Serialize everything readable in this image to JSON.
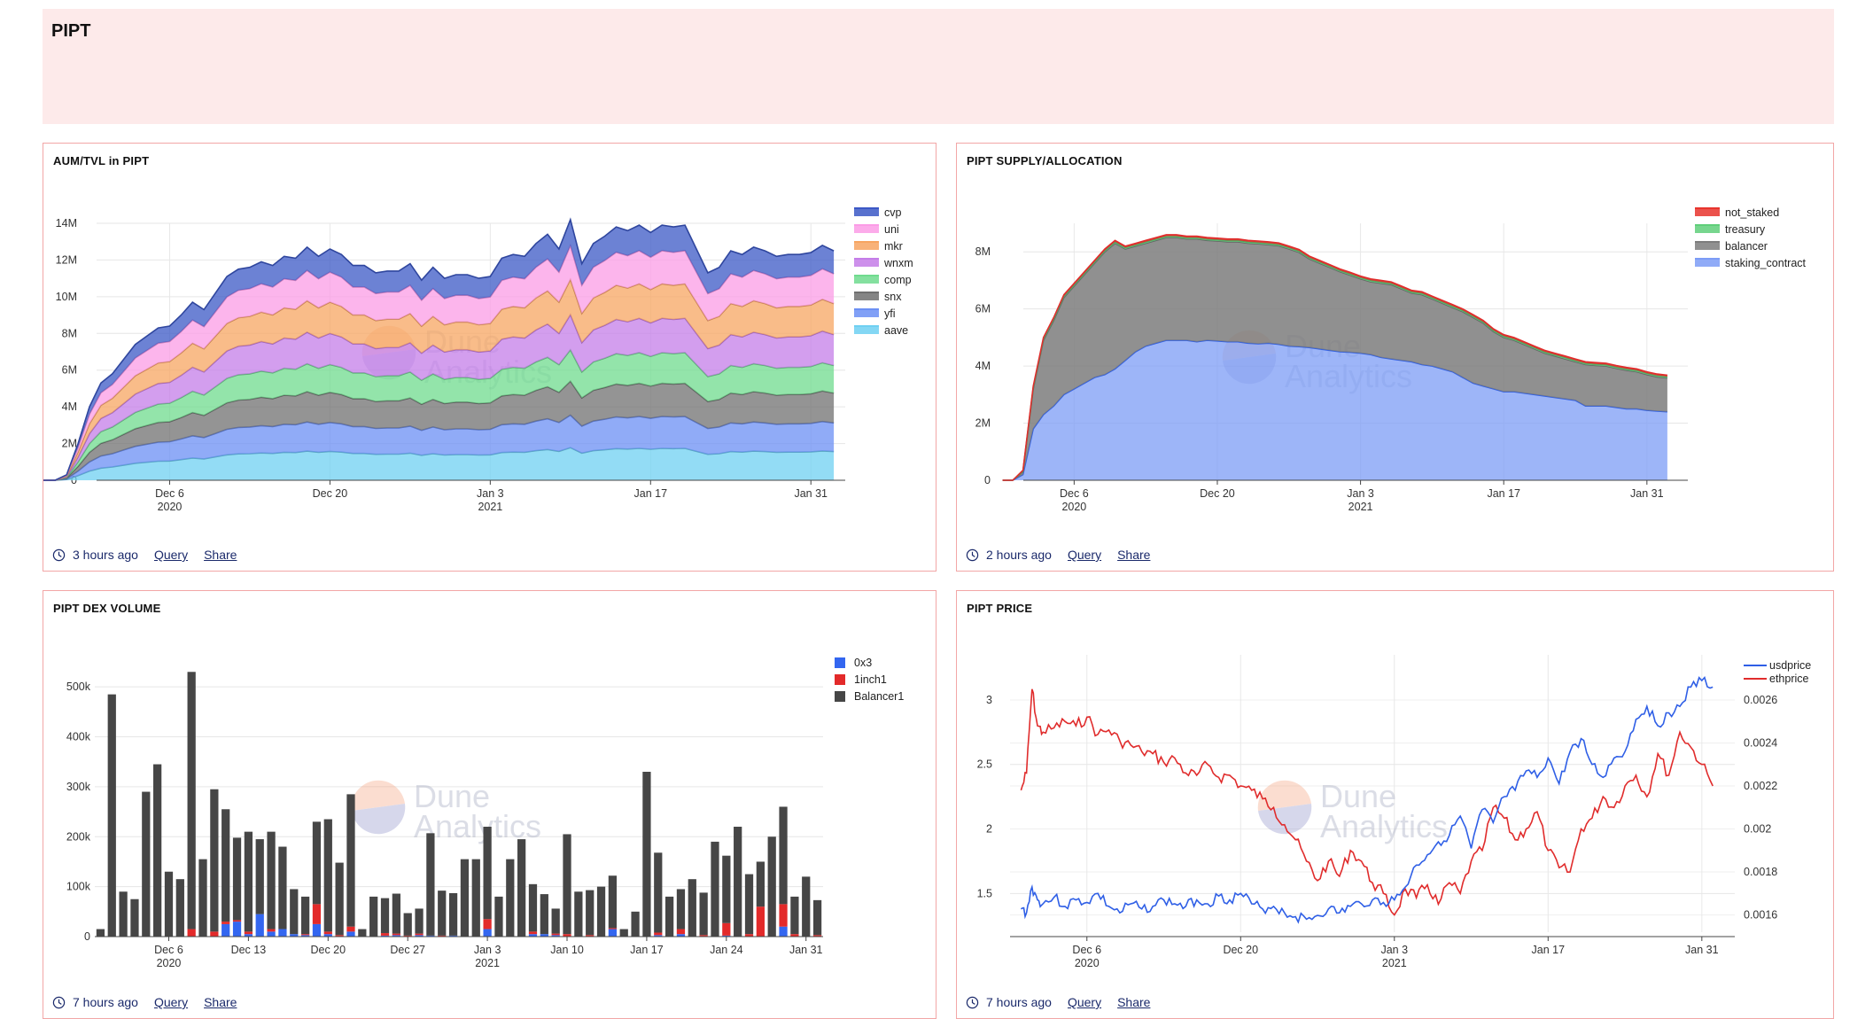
{
  "page": {
    "title": "PIPT"
  },
  "watermark": {
    "line1": "Dune",
    "line2": "Analytics"
  },
  "panels": [
    {
      "title": "AUM/TVL in PIPT",
      "ago": "3 hours ago",
      "query": "Query",
      "share": "Share"
    },
    {
      "title": "PIPT SUPPLY/ALLOCATION",
      "ago": "2 hours ago",
      "query": "Query",
      "share": "Share"
    },
    {
      "title": "PIPT DEX VOLUME",
      "ago": "7 hours ago",
      "query": "Query",
      "share": "Share"
    },
    {
      "title": "PIPT PRICE",
      "ago": "7 hours ago",
      "query": "Query",
      "share": "Share"
    }
  ],
  "chart_data": [
    {
      "type": "area",
      "title": "AUM/TVL in PIPT",
      "stacked": true,
      "x_ticks": [
        {
          "day": 6,
          "label": "Dec 6",
          "sub": "2020"
        },
        {
          "day": 20,
          "label": "Dec 20",
          "sub": ""
        },
        {
          "day": 34,
          "label": "Jan 3",
          "sub": "2021"
        },
        {
          "day": 48,
          "label": "Jan 17",
          "sub": ""
        },
        {
          "day": 62,
          "label": "Jan 31",
          "sub": ""
        }
      ],
      "x_range": [
        -1,
        65
      ],
      "y_range": [
        0,
        14
      ],
      "y_ticks": [
        0,
        2,
        4,
        6,
        8,
        10,
        12,
        14
      ],
      "y_tick_labels": [
        "0",
        "2M",
        "4M",
        "6M",
        "8M",
        "10M",
        "12M",
        "14M"
      ],
      "x_days": [
        -6,
        -4,
        -3,
        -2,
        -1,
        0,
        1,
        2,
        3,
        5,
        6,
        7,
        8,
        9,
        10,
        11,
        12,
        13,
        14,
        15,
        16,
        17,
        18,
        19,
        20,
        21,
        22,
        23,
        24,
        25,
        26,
        27,
        28,
        29,
        30,
        31,
        32,
        33,
        34,
        35,
        36,
        37,
        38,
        39,
        40,
        41,
        42,
        43,
        44,
        45,
        46,
        47,
        48,
        49,
        50,
        51,
        52,
        53,
        54,
        55,
        56,
        57,
        58,
        59,
        60,
        61,
        62,
        63,
        64
      ],
      "totals": [
        0,
        0,
        0.3,
        2.0,
        4.0,
        5.3,
        5.8,
        6.6,
        7.4,
        8.3,
        8.4,
        9.0,
        9.7,
        9.3,
        10.2,
        11.1,
        11.5,
        11.6,
        11.9,
        11.7,
        12.2,
        12.1,
        12.7,
        12.2,
        12.6,
        12.3,
        11.7,
        11.7,
        11.3,
        11.4,
        11.4,
        11.8,
        10.9,
        11.6,
        11.0,
        11.2,
        11.2,
        11.0,
        11.1,
        12.1,
        12.3,
        12.2,
        12.9,
        13.4,
        12.6,
        14.2,
        11.8,
        12.9,
        13.3,
        13.8,
        13.6,
        13.9,
        13.5,
        13.9,
        13.8,
        13.9,
        12.6,
        11.3,
        11.6,
        12.5,
        12.3,
        12.7,
        12.5,
        12.2,
        12.3,
        12.3,
        12.4,
        12.8,
        12.5
      ],
      "series": [
        {
          "name": "aave",
          "color": "#6fd0f2",
          "fraction": 0.125
        },
        {
          "name": "yfi",
          "color": "#6b8ff4",
          "fraction": 0.125
        },
        {
          "name": "snx",
          "color": "#707070",
          "fraction": 0.13
        },
        {
          "name": "comp",
          "color": "#6fdb8e",
          "fraction": 0.12
        },
        {
          "name": "wnxm",
          "color": "#c47de8",
          "fraction": 0.135
        },
        {
          "name": "mkr",
          "color": "#f7a561",
          "fraction": 0.135
        },
        {
          "name": "uni",
          "color": "#fb9ce6",
          "fraction": 0.13
        },
        {
          "name": "cvp",
          "color": "#3b58c6",
          "fraction": 0.1
        }
      ],
      "legend": [
        "cvp",
        "uni",
        "mkr",
        "wnxm",
        "comp",
        "snx",
        "yfi",
        "aave"
      ],
      "legend_position": "top-right"
    },
    {
      "type": "area",
      "title": "PIPT SUPPLY/ALLOCATION",
      "stacked": true,
      "x_ticks": [
        {
          "day": 6,
          "label": "Dec 6",
          "sub": "2020"
        },
        {
          "day": 20,
          "label": "Dec 20",
          "sub": ""
        },
        {
          "day": 34,
          "label": "Jan 3",
          "sub": "2021"
        },
        {
          "day": 48,
          "label": "Jan 17",
          "sub": ""
        },
        {
          "day": 62,
          "label": "Jan 31",
          "sub": ""
        }
      ],
      "x_range": [
        -2,
        66
      ],
      "y_range": [
        0,
        9
      ],
      "y_ticks": [
        0,
        2,
        4,
        6,
        8
      ],
      "y_tick_labels": [
        "0",
        "2M",
        "4M",
        "6M",
        "8M"
      ],
      "x_days": [
        -1,
        0,
        1,
        2,
        3,
        4,
        5,
        6,
        7,
        8,
        9,
        10,
        11,
        12,
        13,
        14,
        15,
        16,
        17,
        18,
        19,
        20,
        21,
        22,
        23,
        24,
        25,
        26,
        27,
        28,
        29,
        30,
        31,
        32,
        33,
        34,
        35,
        36,
        37,
        38,
        39,
        40,
        41,
        42,
        43,
        44,
        45,
        46,
        47,
        48,
        49,
        50,
        51,
        52,
        53,
        54,
        55,
        56,
        57,
        58,
        59,
        60,
        61,
        62,
        63,
        64
      ],
      "staking_contract": [
        0,
        0,
        0.2,
        1.8,
        2.3,
        2.6,
        3.0,
        3.2,
        3.4,
        3.6,
        3.7,
        3.9,
        4.2,
        4.5,
        4.7,
        4.8,
        4.9,
        4.9,
        4.9,
        4.85,
        4.9,
        4.88,
        4.85,
        4.85,
        4.8,
        4.78,
        4.8,
        4.76,
        4.7,
        4.68,
        4.65,
        4.6,
        4.55,
        4.5,
        4.48,
        4.45,
        4.4,
        4.3,
        4.25,
        4.2,
        4.15,
        4.05,
        4.0,
        3.9,
        3.8,
        3.6,
        3.4,
        3.3,
        3.2,
        3.1,
        3.1,
        3.05,
        3.0,
        2.95,
        2.9,
        2.85,
        2.8,
        2.6,
        2.6,
        2.6,
        2.55,
        2.5,
        2.5,
        2.45,
        2.42,
        2.4
      ],
      "balancer": [
        0,
        0,
        0.1,
        1.4,
        2.6,
        3.0,
        3.4,
        3.6,
        3.8,
        4.0,
        4.3,
        4.4,
        3.9,
        3.7,
        3.6,
        3.6,
        3.6,
        3.6,
        3.55,
        3.6,
        3.5,
        3.5,
        3.5,
        3.5,
        3.5,
        3.5,
        3.45,
        3.45,
        3.4,
        3.3,
        3.1,
        3.0,
        2.9,
        2.8,
        2.7,
        2.6,
        2.55,
        2.6,
        2.6,
        2.5,
        2.4,
        2.45,
        2.35,
        2.3,
        2.25,
        2.3,
        2.3,
        2.2,
        2.0,
        1.9,
        1.8,
        1.7,
        1.6,
        1.5,
        1.45,
        1.4,
        1.35,
        1.45,
        1.42,
        1.4,
        1.37,
        1.35,
        1.3,
        1.25,
        1.2,
        1.18
      ],
      "treasury": [
        0,
        0,
        0.02,
        0.05,
        0.05,
        0.05,
        0.05,
        0.05,
        0.05,
        0.05,
        0.05,
        0.05,
        0.05,
        0.05,
        0.05,
        0.05,
        0.05,
        0.05,
        0.05,
        0.05,
        0.05,
        0.05,
        0.05,
        0.05,
        0.05,
        0.05,
        0.05,
        0.05,
        0.05,
        0.05,
        0.05,
        0.05,
        0.05,
        0.05,
        0.05,
        0.05,
        0.05,
        0.05,
        0.05,
        0.05,
        0.05,
        0.05,
        0.05,
        0.05,
        0.05,
        0.05,
        0.05,
        0.05,
        0.05,
        0.05,
        0.05,
        0.05,
        0.05,
        0.05,
        0.05,
        0.05,
        0.05,
        0.05,
        0.05,
        0.05,
        0.05,
        0.05,
        0.05,
        0.05,
        0.05,
        0.05
      ],
      "not_staked": [
        0,
        0,
        0.03,
        0.05,
        0.05,
        0.05,
        0.05,
        0.05,
        0.05,
        0.05,
        0.05,
        0.05,
        0.05,
        0.05,
        0.05,
        0.05,
        0.05,
        0.05,
        0.05,
        0.05,
        0.05,
        0.05,
        0.05,
        0.05,
        0.05,
        0.05,
        0.05,
        0.05,
        0.05,
        0.05,
        0.05,
        0.05,
        0.05,
        0.05,
        0.05,
        0.05,
        0.05,
        0.05,
        0.05,
        0.05,
        0.05,
        0.05,
        0.05,
        0.05,
        0.05,
        0.05,
        0.05,
        0.05,
        0.05,
        0.05,
        0.05,
        0.05,
        0.05,
        0.05,
        0.05,
        0.05,
        0.05,
        0.05,
        0.05,
        0.05,
        0.05,
        0.05,
        0.05,
        0.05,
        0.05,
        0.05
      ],
      "series": [
        {
          "name": "not_staked",
          "color": "#e8342d"
        },
        {
          "name": "treasury",
          "color": "#5fcf7a"
        },
        {
          "name": "balancer",
          "color": "#7d7d7d"
        },
        {
          "name": "staking_contract",
          "color": "#7c9cf6"
        }
      ],
      "legend_position": "top-right"
    },
    {
      "type": "bar",
      "title": "PIPT DEX VOLUME",
      "stacked": true,
      "x_ticks": [
        {
          "index": 6,
          "label": "Dec 6",
          "sub": "2020"
        },
        {
          "index": 13,
          "label": "Dec 13",
          "sub": ""
        },
        {
          "index": 20,
          "label": "Dec 20",
          "sub": ""
        },
        {
          "index": 27,
          "label": "Dec 27",
          "sub": ""
        },
        {
          "index": 34,
          "label": "Jan 3",
          "sub": "2021"
        },
        {
          "index": 41,
          "label": "Jan 10",
          "sub": ""
        },
        {
          "index": 48,
          "label": "Jan 17",
          "sub": ""
        },
        {
          "index": 55,
          "label": "Jan 24",
          "sub": ""
        },
        {
          "index": 62,
          "label": "Jan 31",
          "sub": ""
        }
      ],
      "y_range": [
        0,
        550
      ],
      "y_ticks": [
        0,
        100,
        200,
        300,
        400,
        500
      ],
      "y_tick_labels": [
        "0",
        "100k",
        "200k",
        "300k",
        "400k",
        "500k"
      ],
      "categories_count": 64,
      "balancer": [
        15,
        485,
        90,
        75,
        290,
        345,
        130,
        115,
        515,
        155,
        285,
        225,
        165,
        200,
        150,
        195,
        165,
        90,
        75,
        165,
        225,
        145,
        265,
        15,
        80,
        70,
        80,
        45,
        50,
        205,
        90,
        85,
        155,
        155,
        185,
        80,
        155,
        195,
        95,
        80,
        50,
        200,
        90,
        90,
        100,
        105,
        15,
        50,
        330,
        160,
        80,
        80,
        115,
        85,
        190,
        135,
        220,
        120,
        90,
        200,
        195,
        75,
        120,
        70
      ],
      "inch1": [
        0,
        0,
        0,
        0,
        0,
        0,
        0,
        0,
        15,
        0,
        10,
        5,
        3,
        5,
        0,
        5,
        0,
        0,
        2,
        40,
        5,
        3,
        10,
        0,
        0,
        5,
        3,
        2,
        3,
        0,
        2,
        0,
        0,
        0,
        20,
        0,
        0,
        0,
        5,
        0,
        3,
        5,
        0,
        3,
        0,
        2,
        0,
        0,
        0,
        5,
        0,
        10,
        0,
        3,
        0,
        25,
        0,
        5,
        60,
        0,
        45,
        5,
        0,
        3
      ],
      "x3": [
        0,
        0,
        0,
        0,
        0,
        0,
        0,
        0,
        0,
        0,
        0,
        25,
        30,
        5,
        45,
        10,
        15,
        5,
        3,
        25,
        5,
        0,
        10,
        0,
        0,
        2,
        3,
        0,
        3,
        2,
        0,
        2,
        0,
        0,
        15,
        0,
        0,
        0,
        5,
        5,
        3,
        0,
        0,
        0,
        0,
        15,
        0,
        0,
        0,
        3,
        0,
        5,
        0,
        0,
        0,
        2,
        0,
        0,
        0,
        0,
        20,
        0,
        0,
        0
      ],
      "series": [
        {
          "name": "0x3",
          "color": "#3366f0"
        },
        {
          "name": "1inch1",
          "color": "#e32a2a"
        },
        {
          "name": "Balancer1",
          "color": "#464646"
        }
      ],
      "legend_position": "top-right"
    },
    {
      "type": "line",
      "title": "PIPT PRICE",
      "x_ticks": [
        {
          "day": 6,
          "label": "Dec 6",
          "sub": "2020"
        },
        {
          "day": 20,
          "label": "Dec 20",
          "sub": ""
        },
        {
          "day": 34,
          "label": "Jan 3",
          "sub": "2021"
        },
        {
          "day": 48,
          "label": "Jan 17",
          "sub": ""
        },
        {
          "day": 62,
          "label": "Jan 31",
          "sub": ""
        }
      ],
      "x_range": [
        -1,
        65
      ],
      "y_left_range": [
        1.2,
        3.35
      ],
      "y_left_ticks": [
        1.5,
        2,
        2.5,
        3
      ],
      "y_left_tick_labels": [
        "1.5",
        "2",
        "2.5",
        "3"
      ],
      "y_right_range": [
        0.00152,
        0.00281
      ],
      "y_right_ticks": [
        0.0016,
        0.0018,
        0.002,
        0.0022,
        0.0024,
        0.0026
      ],
      "y_right_tick_labels": [
        "0.0016",
        "0.0018",
        "0.002",
        "0.0022",
        "0.0024",
        "0.0026"
      ],
      "x_days": [
        0,
        0.5,
        1,
        1.5,
        2,
        3,
        4,
        5,
        6,
        7,
        8,
        9,
        10,
        11,
        12,
        13,
        14,
        15,
        16,
        17,
        18,
        19,
        20,
        21,
        22,
        23,
        24,
        25,
        26,
        27,
        28,
        29,
        30,
        31,
        32,
        33,
        34,
        35,
        36,
        37,
        38,
        39,
        40,
        41,
        42,
        43,
        44,
        45,
        46,
        47,
        48,
        49,
        50,
        51,
        52,
        53,
        54,
        55,
        56,
        57,
        58,
        59,
        60,
        61,
        62,
        63
      ],
      "usdprice": [
        1.38,
        1.35,
        1.55,
        1.45,
        1.42,
        1.47,
        1.4,
        1.45,
        1.43,
        1.5,
        1.4,
        1.35,
        1.42,
        1.38,
        1.4,
        1.45,
        1.42,
        1.4,
        1.45,
        1.42,
        1.48,
        1.45,
        1.5,
        1.42,
        1.38,
        1.4,
        1.35,
        1.32,
        1.3,
        1.33,
        1.38,
        1.35,
        1.4,
        1.42,
        1.45,
        1.43,
        1.45,
        1.55,
        1.72,
        1.8,
        1.9,
        1.95,
        2.1,
        1.85,
        2.15,
        2.05,
        2.25,
        2.3,
        2.45,
        2.4,
        2.55,
        2.35,
        2.6,
        2.7,
        2.5,
        2.4,
        2.55,
        2.6,
        2.85,
        2.95,
        2.8,
        2.9,
        2.95,
        3.1,
        3.15,
        3.1
      ],
      "ethprice": [
        0.00218,
        0.00226,
        0.00265,
        0.00248,
        0.00245,
        0.00247,
        0.0025,
        0.00248,
        0.00252,
        0.00244,
        0.00246,
        0.00241,
        0.00239,
        0.00236,
        0.00235,
        0.00231,
        0.00233,
        0.00226,
        0.00225,
        0.0023,
        0.00224,
        0.00225,
        0.0022,
        0.00218,
        0.00214,
        0.0021,
        0.00202,
        0.00195,
        0.00185,
        0.00176,
        0.00185,
        0.00178,
        0.0019,
        0.00185,
        0.00175,
        0.0017,
        0.0016,
        0.00172,
        0.00168,
        0.00174,
        0.00165,
        0.00175,
        0.0017,
        0.00185,
        0.0019,
        0.0021,
        0.00205,
        0.00195,
        0.002,
        0.00208,
        0.0019,
        0.00182,
        0.0018,
        0.002,
        0.00205,
        0.00215,
        0.0021,
        0.0022,
        0.00225,
        0.00215,
        0.00235,
        0.00225,
        0.00245,
        0.00238,
        0.0023,
        0.0022
      ],
      "series": [
        {
          "name": "usdprice",
          "color": "#2f5fe6",
          "axis": "left"
        },
        {
          "name": "ethprice",
          "color": "#e02c2c",
          "axis": "right"
        }
      ],
      "legend_position": "top-right"
    }
  ]
}
